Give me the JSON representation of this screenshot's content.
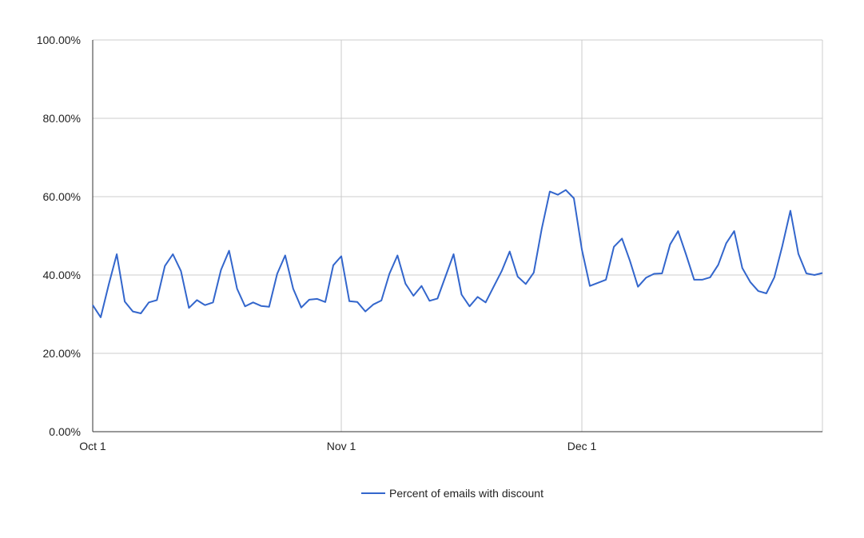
{
  "chart_data": {
    "type": "line",
    "title": "",
    "xlabel": "",
    "ylabel": "",
    "x_axis": {
      "start_date": "Oct 1",
      "tick_labels": [
        "Oct 1",
        "Nov 1",
        "Dec 1"
      ],
      "tick_days": [
        0,
        31,
        61
      ],
      "day_range": [
        0,
        91
      ]
    },
    "y_axis": {
      "ylim": [
        0,
        100
      ],
      "tick_values": [
        0,
        20,
        40,
        60,
        80,
        100
      ],
      "tick_labels": [
        "0.00%",
        "20.00%",
        "40.00%",
        "60.00%",
        "80.00%",
        "100.00%"
      ]
    },
    "grid": true,
    "legend_position": "bottom",
    "colors": {
      "series": "#3366cc",
      "grid": "#cccccc",
      "axis": "#333333"
    },
    "series": [
      {
        "name": "Percent of emails with discount",
        "values": [
          32.3,
          29.2,
          37.6,
          45.3,
          33.2,
          30.7,
          30.2,
          33.0,
          33.6,
          42.3,
          45.3,
          41.0,
          31.6,
          33.6,
          32.3,
          33.0,
          41.3,
          46.2,
          36.5,
          32.0,
          33.0,
          32.1,
          31.9,
          40.3,
          45.0,
          36.5,
          31.7,
          33.7,
          33.9,
          33.1,
          42.5,
          44.8,
          33.3,
          33.1,
          30.7,
          32.5,
          33.5,
          40.3,
          45.0,
          37.8,
          34.7,
          37.2,
          33.4,
          34.0,
          39.7,
          45.3,
          35.0,
          32.0,
          34.4,
          33.0,
          37.0,
          41.0,
          46.0,
          39.6,
          37.7,
          40.6,
          51.8,
          61.3,
          60.5,
          61.7,
          59.6,
          46.5,
          37.2,
          38.0,
          38.8,
          47.2,
          49.3,
          43.6,
          37.0,
          39.3,
          40.3,
          40.4,
          47.8,
          51.2,
          45.2,
          38.8,
          38.8,
          39.4,
          42.6,
          48.1,
          51.2,
          41.8,
          38.2,
          35.9,
          35.3,
          39.4,
          47.4,
          56.4,
          45.4,
          40.4,
          40.0,
          40.5
        ]
      }
    ]
  }
}
